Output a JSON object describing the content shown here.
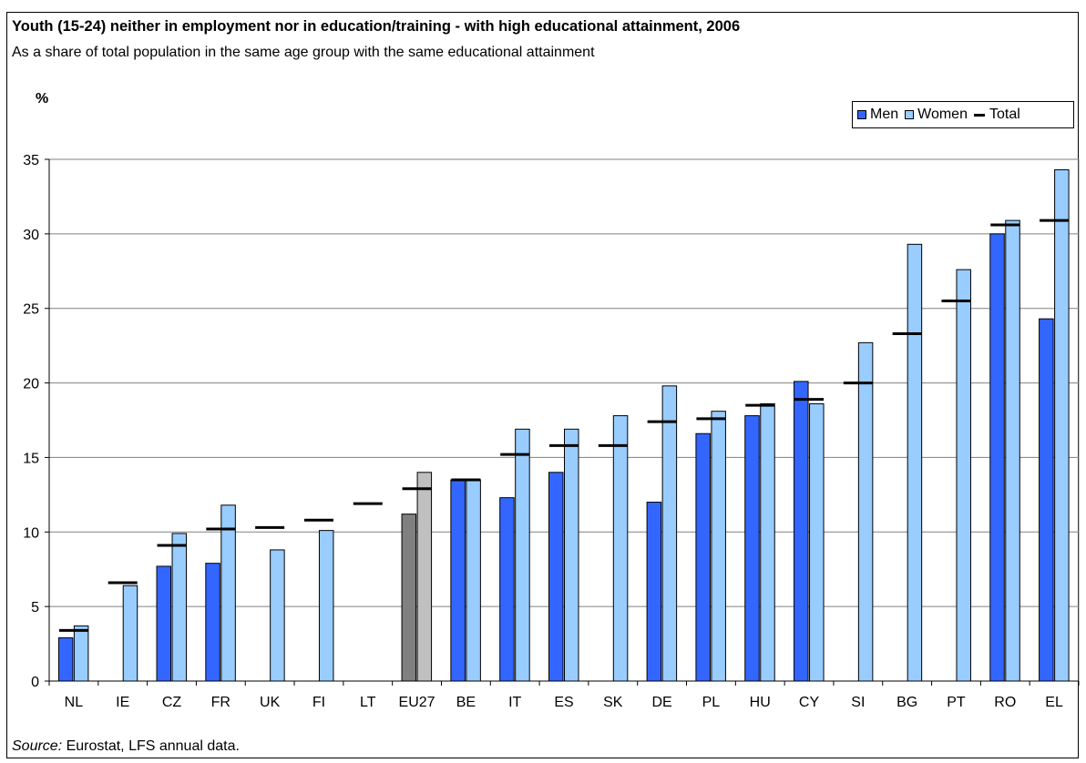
{
  "title": "Youth (15-24) neither in employment nor in education/training - with high educational attainment, 2006",
  "subtitle": "As a share of total population in the same age group with the same educational attainment",
  "unit_label": "%",
  "source_label": "Source:",
  "source_text": " Eurostat, LFS annual data.",
  "legend": {
    "men": "Men",
    "women": "Women",
    "total": "Total"
  },
  "colors": {
    "men": "#3366ff",
    "women": "#99ccff",
    "eu_men": "#808080",
    "eu_women": "#c0c0c0",
    "total": "#000000"
  },
  "chart_data": {
    "type": "bar",
    "title": "Youth (15-24) neither in employment nor in education/training - with high educational attainment, 2006",
    "ylabel": "%",
    "ylim": [
      0,
      35
    ],
    "yticks": [
      0,
      5,
      10,
      15,
      20,
      25,
      30,
      35
    ],
    "grid": true,
    "legend_position": "top-right",
    "categories": [
      "NL",
      "IE",
      "CZ",
      "FR",
      "UK",
      "FI",
      "LT",
      "EU27",
      "BE",
      "IT",
      "ES",
      "SK",
      "DE",
      "PL",
      "HU",
      "CY",
      "SI",
      "BG",
      "PT",
      "RO",
      "EL"
    ],
    "series": [
      {
        "name": "Men",
        "values": [
          2.9,
          null,
          7.7,
          7.9,
          null,
          null,
          null,
          11.2,
          13.5,
          12.3,
          14.0,
          null,
          12.0,
          16.6,
          17.8,
          20.1,
          null,
          null,
          null,
          30.0,
          24.3
        ]
      },
      {
        "name": "Women",
        "values": [
          3.7,
          6.4,
          9.9,
          11.8,
          8.8,
          10.1,
          null,
          14.0,
          13.5,
          16.9,
          16.9,
          17.8,
          19.8,
          18.1,
          18.6,
          18.6,
          22.7,
          29.3,
          27.6,
          30.9,
          34.3
        ]
      },
      {
        "name": "Total",
        "values": [
          3.4,
          6.6,
          9.1,
          10.2,
          10.3,
          10.8,
          11.9,
          12.9,
          13.5,
          15.2,
          15.8,
          15.8,
          17.4,
          17.6,
          18.5,
          18.9,
          20.0,
          23.3,
          25.5,
          30.6,
          30.9
        ]
      }
    ]
  }
}
